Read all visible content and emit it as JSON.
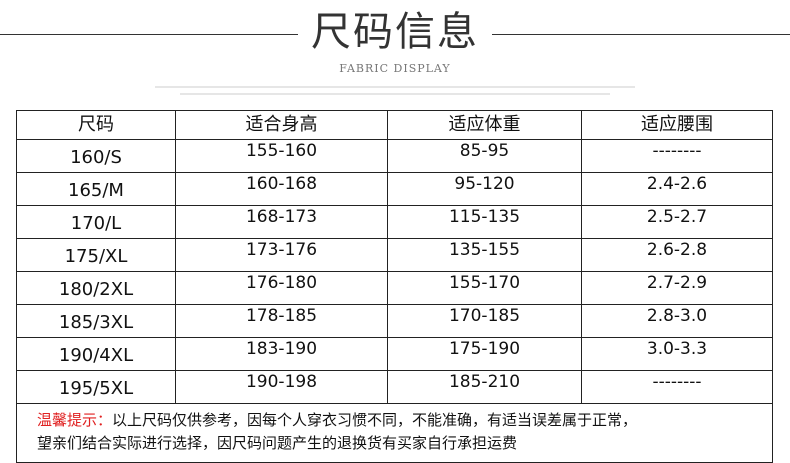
{
  "header": {
    "title": "尺码信息",
    "subtitle": "FABRIC DISPLAY"
  },
  "table": {
    "columns": [
      "尺码",
      "适合身高",
      "适应体重",
      "适应腰围"
    ],
    "rows": [
      [
        "160/S",
        "155-160",
        "85-95",
        "--------"
      ],
      [
        "165/M",
        "160-168",
        "95-120",
        "2.4-2.6"
      ],
      [
        "170/L",
        "168-173",
        "115-135",
        "2.5-2.7"
      ],
      [
        "175/XL",
        "173-176",
        "135-155",
        "2.6-2.8"
      ],
      [
        "180/2XL",
        "176-180",
        "155-170",
        "2.7-2.9"
      ],
      [
        "185/3XL",
        "178-185",
        "170-185",
        "2.8-3.0"
      ],
      [
        "190/4XL",
        "183-190",
        "175-190",
        "3.0-3.3"
      ],
      [
        "195/5XL",
        "190-198",
        "185-210",
        "--------"
      ]
    ]
  },
  "note": {
    "label": "温馨提示：",
    "line1": "以上尺码仅供参考，因每个人穿衣习惯不同，不能准确，有适当误差属于正常，",
    "line2": "望亲们结合实际进行选择，因尺码问题产生的退换货有买家自行承担运费"
  },
  "colors": {
    "warning": "#e02020",
    "border": "#222222"
  }
}
